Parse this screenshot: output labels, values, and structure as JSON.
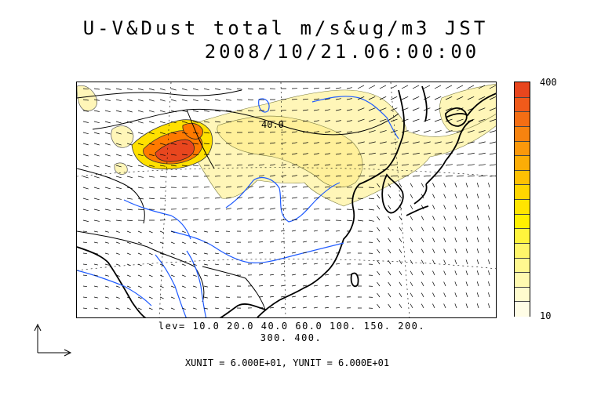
{
  "title_line1": "U-V&Dust total m/s&ug/m3 JST",
  "title_line2": "2008/10/21.06:00:00",
  "map": {
    "contour_label": "40.0",
    "colors": {
      "land_boundary": "#000000",
      "rivers": "#1f5bff",
      "dust_low": "#fff6b8",
      "dust_mid": "#ffe000",
      "dust_high": "#ff7a00",
      "dust_max": "#e8461e"
    }
  },
  "colorbar": {
    "max_label": "400",
    "min_label": "10",
    "colors": [
      "#e8461e",
      "#f05a1a",
      "#f46e14",
      "#f7830f",
      "#fa980b",
      "#fcad06",
      "#fec103",
      "#ffd600",
      "#ffe500",
      "#fff000",
      "#fff43c",
      "#fff66a",
      "#fff890",
      "#fffab0",
      "#fffcce",
      "#fffde6"
    ]
  },
  "levels_line1": "lev= 10.0 20.0 40.0 60.0 100. 150. 200.",
  "levels_line2": "300. 400.",
  "units": "XUNIT = 6.000E+01, YUNIT = 6.000E+01"
}
